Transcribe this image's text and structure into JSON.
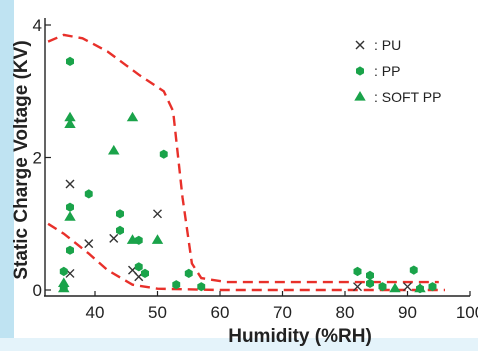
{
  "chart_data": {
    "type": "scatter",
    "title": "",
    "xlabel": "Humidity (%RH)",
    "ylabel": "Static Charge Voltage (KV)",
    "xlim": [
      32,
      100
    ],
    "ylim": [
      0,
      4
    ],
    "x_ticks": [
      40,
      50,
      60,
      70,
      80,
      90,
      100
    ],
    "y_ticks": [
      0,
      2,
      4
    ],
    "grid": false,
    "legend_position": "top-right",
    "colors": {
      "PU": "#333333",
      "PP": "#1aa34a",
      "SOFT PP": "#1aa34a",
      "envelope": "#e8302a",
      "axis": "#222222",
      "left_strip": "#bfe3f2"
    },
    "series": [
      {
        "name": ": PU",
        "marker": "x",
        "points": [
          [
            36,
            1.6
          ],
          [
            39,
            0.7
          ],
          [
            43,
            0.78
          ],
          [
            46,
            0.3
          ],
          [
            47,
            0.2
          ],
          [
            50,
            1.15
          ],
          [
            36,
            0.25
          ],
          [
            82,
            0.05
          ],
          [
            90,
            0.05
          ]
        ]
      },
      {
        "name": ": PP",
        "marker": "hexagon",
        "points": [
          [
            36,
            3.45
          ],
          [
            36,
            1.25
          ],
          [
            36,
            0.6
          ],
          [
            39,
            1.45
          ],
          [
            44,
            1.15
          ],
          [
            44,
            0.9
          ],
          [
            47,
            0.75
          ],
          [
            47,
            0.35
          ],
          [
            48,
            0.25
          ],
          [
            51,
            2.05
          ],
          [
            35,
            0.28
          ],
          [
            55,
            0.25
          ],
          [
            57,
            0.05
          ],
          [
            82,
            0.28
          ],
          [
            84,
            0.22
          ],
          [
            84,
            0.1
          ],
          [
            91,
            0.3
          ],
          [
            86,
            0.05
          ],
          [
            94,
            0.05
          ],
          [
            92,
            0.02
          ],
          [
            35,
            0.05
          ],
          [
            53,
            0.08
          ]
        ]
      },
      {
        "name": ": SOFT PP",
        "marker": "triangle",
        "points": [
          [
            36,
            2.6
          ],
          [
            36,
            2.5
          ],
          [
            46,
            2.6
          ],
          [
            43,
            2.1
          ],
          [
            36,
            1.1
          ],
          [
            46,
            0.75
          ],
          [
            50,
            0.75
          ],
          [
            35,
            0.02
          ],
          [
            35,
            0.1
          ],
          [
            88,
            0.02
          ],
          [
            92,
            0.02
          ]
        ]
      }
    ],
    "envelope": {
      "upper": [
        [
          32.5,
          3.75
        ],
        [
          35,
          3.85
        ],
        [
          38,
          3.8
        ],
        [
          42,
          3.6
        ],
        [
          47,
          3.25
        ],
        [
          51,
          3.0
        ],
        [
          52.5,
          2.7
        ],
        [
          54,
          1.4
        ],
        [
          55.5,
          0.4
        ],
        [
          57,
          0.18
        ],
        [
          61,
          0.12
        ],
        [
          75,
          0.12
        ],
        [
          95,
          0.12
        ]
      ],
      "lower": [
        [
          32.5,
          1.0
        ],
        [
          35,
          0.85
        ],
        [
          39,
          0.55
        ],
        [
          42,
          0.3
        ],
        [
          46,
          0.08
        ],
        [
          50,
          0.02
        ],
        [
          60,
          0.0
        ],
        [
          75,
          0.0
        ],
        [
          96,
          0.0
        ]
      ]
    }
  }
}
